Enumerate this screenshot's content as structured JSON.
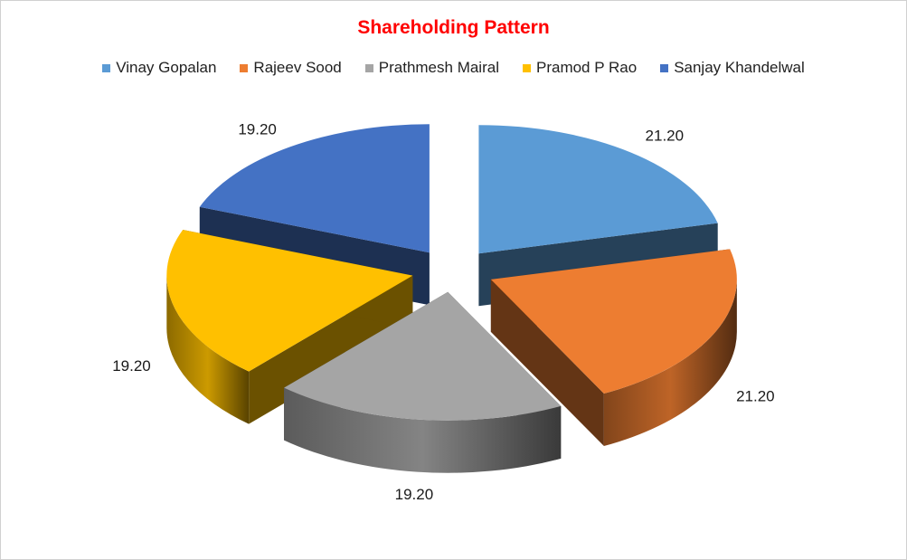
{
  "chart_data": {
    "type": "pie",
    "title": "Shareholding Pattern",
    "style": "3d-exploded",
    "legend_position": "top",
    "categories": [
      "Vinay Gopalan",
      "Rajeev Sood",
      "Prathmesh Mairal",
      "Pramod P Rao",
      "Sanjay Khandelwal"
    ],
    "values": [
      21.2,
      21.2,
      19.2,
      19.2,
      19.2
    ],
    "value_labels": [
      "21.20",
      "21.20",
      "19.20",
      "19.20",
      "19.20"
    ],
    "colors": [
      "#5B9BD5",
      "#ED7D31",
      "#A5A5A5",
      "#FFC000",
      "#4472C4"
    ],
    "title_color": "#FF0000"
  }
}
